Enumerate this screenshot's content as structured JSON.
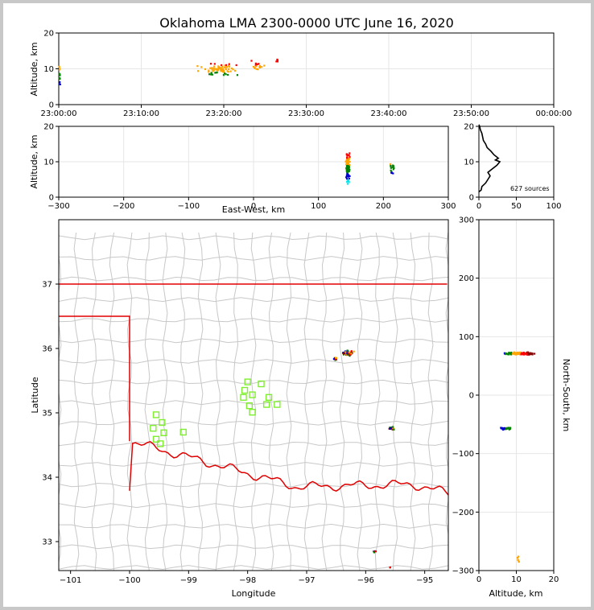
{
  "colors": {
    "border": "#c8c8c8",
    "background": "#ffffff",
    "grid": "#e6e6e6",
    "county_lines": "#c8c8c8",
    "state_line": "#e00000",
    "station_marker": "#80ee30",
    "histogram_line": "#000000",
    "source_palette": [
      "#00e5ee",
      "#0000cd",
      "#008000",
      "#ffa500",
      "#ff0000",
      "#8b0000",
      "#000000"
    ]
  },
  "chart_data": [
    {
      "id": "time_height",
      "type": "scatter",
      "title": "Oklahoma LMA 2300-0000 UTC June 16, 2020",
      "xlabel": "",
      "ylabel": "Altitude, km",
      "xlim": [
        0,
        60
      ],
      "ylim": [
        0,
        20
      ],
      "xticks": [
        0,
        10,
        20,
        30,
        40,
        50,
        60
      ],
      "xticklabels": [
        "23:00:00",
        "23:10:00",
        "23:20:00",
        "23:30:00",
        "23:40:00",
        "23:50:00",
        "00:00:00"
      ],
      "yticks": [
        0,
        10,
        20
      ],
      "grid": true,
      "clusters": [
        {
          "x": 19.5,
          "y": 9.8,
          "dx": 3.5,
          "dy": 2.2,
          "n": 70
        },
        {
          "x": 24.0,
          "y": 11.0,
          "dx": 1.0,
          "dy": 2.0,
          "n": 18
        },
        {
          "x": 26.5,
          "y": 12.0,
          "dx": 0.2,
          "dy": 1.0,
          "n": 6
        },
        {
          "x": 0.1,
          "y": 7.0,
          "dx": 0.1,
          "dy": 4.5,
          "n": 16
        }
      ]
    },
    {
      "id": "ew_height",
      "type": "scatter",
      "xlabel": "East-West, km",
      "ylabel": "Altitude, km",
      "xlim": [
        -300,
        300
      ],
      "ylim": [
        0,
        20
      ],
      "xticks": [
        -300,
        -200,
        -100,
        0,
        100,
        200,
        300
      ],
      "yticks": [
        0,
        10,
        20
      ],
      "grid": true,
      "clusters": [
        {
          "x": 145,
          "y": 9.0,
          "dx": 4,
          "dy": 5.5,
          "n": 110
        },
        {
          "x": 213,
          "y": 8.0,
          "dx": 5,
          "dy": 3.5,
          "n": 14
        }
      ]
    },
    {
      "id": "altitude_histogram",
      "type": "line",
      "xlim": [
        0,
        100
      ],
      "ylim": [
        0,
        20
      ],
      "xticks": [
        0,
        50,
        100
      ],
      "yticks": [
        0,
        10,
        20
      ],
      "annotation": "627 sources",
      "grid": true,
      "x": [
        0,
        3,
        4,
        9,
        12,
        15,
        12,
        18,
        24,
        28,
        22,
        26,
        20,
        16,
        11,
        9,
        6,
        5,
        4,
        3,
        2,
        1,
        0
      ],
      "y": [
        1.5,
        2.0,
        3.0,
        4.0,
        5.0,
        6.0,
        7.0,
        8.0,
        9.0,
        10.0,
        10.5,
        11.0,
        12.0,
        13.0,
        14.0,
        15.0,
        16.0,
        17.0,
        18.0,
        18.5,
        19.0,
        20.0,
        20.5
      ]
    },
    {
      "id": "plan_view",
      "type": "scatter",
      "xlabel": "Longitude",
      "ylabel": "Latitude",
      "xlim": [
        -101.2,
        -94.6
      ],
      "ylim": [
        32.55,
        38.0
      ],
      "xticks": [
        -101,
        -100,
        -99,
        -98,
        -97,
        -96,
        -95
      ],
      "yticks": [
        33,
        34,
        35,
        36,
        37
      ],
      "stations": [
        {
          "lon": -99.55,
          "lat": 34.97
        },
        {
          "lon": -99.45,
          "lat": 34.85
        },
        {
          "lon": -99.6,
          "lat": 34.76
        },
        {
          "lon": -99.42,
          "lat": 34.69
        },
        {
          "lon": -99.55,
          "lat": 34.59
        },
        {
          "lon": -99.48,
          "lat": 34.52
        },
        {
          "lon": -99.09,
          "lat": 34.7
        },
        {
          "lon": -98.0,
          "lat": 35.48
        },
        {
          "lon": -97.77,
          "lat": 35.45
        },
        {
          "lon": -98.05,
          "lat": 35.35
        },
        {
          "lon": -97.92,
          "lat": 35.28
        },
        {
          "lon": -98.07,
          "lat": 35.24
        },
        {
          "lon": -97.64,
          "lat": 35.24
        },
        {
          "lon": -97.68,
          "lat": 35.13
        },
        {
          "lon": -97.97,
          "lat": 35.11
        },
        {
          "lon": -97.5,
          "lat": 35.13
        },
        {
          "lon": -97.92,
          "lat": 35.01
        }
      ],
      "clusters": [
        {
          "lon": -96.3,
          "lat": 35.93,
          "dx": 0.12,
          "dy": 0.05,
          "n": 60
        },
        {
          "lon": -96.52,
          "lat": 35.84,
          "dx": 0.05,
          "dy": 0.03,
          "n": 8
        },
        {
          "lon": -95.55,
          "lat": 34.76,
          "dx": 0.08,
          "dy": 0.04,
          "n": 22
        },
        {
          "lon": -95.85,
          "lat": 32.84,
          "dx": 0.04,
          "dy": 0.02,
          "n": 5
        },
        {
          "lon": -95.58,
          "lat": 32.6,
          "dx": 0.03,
          "dy": 0.02,
          "n": 3
        }
      ]
    },
    {
      "id": "ns_height",
      "type": "scatter",
      "xlabel": "Altitude, km",
      "ylabel": "North-South, km",
      "xlim": [
        0,
        20
      ],
      "ylim": [
        -300,
        300
      ],
      "xticks": [
        0,
        10,
        20
      ],
      "yticks": [
        -300,
        -200,
        -100,
        0,
        100,
        200,
        300
      ],
      "grid": true,
      "clusters": [
        {
          "x": 10.5,
          "y": 71,
          "dx": 6.0,
          "dy": 3,
          "n": 110
        },
        {
          "x": 7.0,
          "y": -57,
          "dx": 2.5,
          "dy": 3,
          "n": 24
        },
        {
          "x": 10.5,
          "y": -282,
          "dx": 0.6,
          "dy": 9,
          "n": 6
        }
      ]
    }
  ]
}
